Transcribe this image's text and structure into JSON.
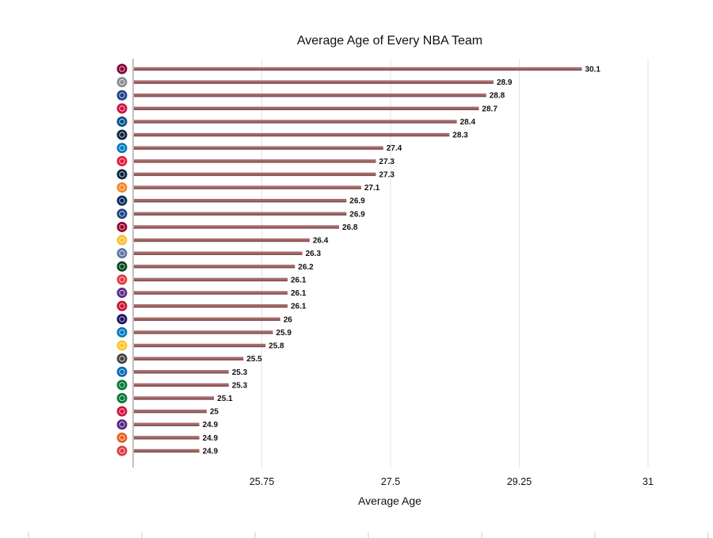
{
  "chart_data": {
    "type": "bar",
    "orientation": "horizontal",
    "title": "Average Age of Every NBA Team",
    "xlabel": "Average Age",
    "ylabel": "",
    "xlim": [
      24,
      31
    ],
    "xticks": [
      25.75,
      27.5,
      29.25,
      31
    ],
    "xtick_labels": [
      "25.75",
      "27.5",
      "29.25",
      "31"
    ],
    "grid": "vertical",
    "bar_color": "#a86b6b",
    "categories": [
      {
        "logo": "cavaliers-logo-icon",
        "color": "#860038"
      },
      {
        "logo": "spurs-logo-icon",
        "color": "#8a8d8f"
      },
      {
        "logo": "warriors-logo-icon",
        "color": "#1d428a"
      },
      {
        "logo": "rockets-logo-icon",
        "color": "#ce1141"
      },
      {
        "logo": "mavericks-logo-icon",
        "color": "#00538c"
      },
      {
        "logo": "pelicans-logo-icon",
        "color": "#0c2340"
      },
      {
        "logo": "thunder-logo-icon",
        "color": "#007ac1"
      },
      {
        "logo": "wizards-logo-icon",
        "color": "#e31837"
      },
      {
        "logo": "timberwolves-logo-icon",
        "color": "#0c2340"
      },
      {
        "logo": "knicks-logo-icon",
        "color": "#f58426"
      },
      {
        "logo": "jazz-logo-icon",
        "color": "#002b5c"
      },
      {
        "logo": "clippers-logo-icon",
        "color": "#1d428a"
      },
      {
        "logo": "heat-logo-icon",
        "color": "#98002e"
      },
      {
        "logo": "pacers-logo-icon",
        "color": "#fdbb30"
      },
      {
        "logo": "grizzlies-logo-icon",
        "color": "#5d76a9"
      },
      {
        "logo": "bucks-logo-icon",
        "color": "#00471b"
      },
      {
        "logo": "hawks-logo-icon",
        "color": "#e03a3e"
      },
      {
        "logo": "kings-logo-icon",
        "color": "#5a2d81"
      },
      {
        "logo": "pistons-logo-icon",
        "color": "#c8102e"
      },
      {
        "logo": "hornets-logo-icon",
        "color": "#1d1160"
      },
      {
        "logo": "magic-logo-icon",
        "color": "#0077c0"
      },
      {
        "logo": "nuggets-logo-icon",
        "color": "#fec524"
      },
      {
        "logo": "nets-logo-icon",
        "color": "#444444"
      },
      {
        "logo": "76ers-logo-icon",
        "color": "#006bb6"
      },
      {
        "logo": "celtics-logo-icon",
        "color": "#007a33"
      },
      {
        "logo": "celtics-alt-logo-icon",
        "color": "#007a33"
      },
      {
        "logo": "bulls-logo-icon",
        "color": "#ce1141"
      },
      {
        "logo": "lakers-logo-icon",
        "color": "#552583"
      },
      {
        "logo": "suns-logo-icon",
        "color": "#e56020"
      },
      {
        "logo": "trail-blazers-logo-icon",
        "color": "#e03a3e"
      }
    ],
    "values": [
      30.1,
      28.9,
      28.8,
      28.7,
      28.4,
      28.3,
      27.4,
      27.3,
      27.3,
      27.1,
      26.9,
      26.9,
      26.8,
      26.4,
      26.3,
      26.2,
      26.1,
      26.1,
      26.1,
      26,
      25.9,
      25.8,
      25.5,
      25.3,
      25.3,
      25.1,
      25,
      24.9,
      24.9,
      24.9
    ],
    "value_labels": [
      "30.1",
      "28.9",
      "28.8",
      "28.7",
      "28.4",
      "28.3",
      "27.4",
      "27.3",
      "27.3",
      "27.1",
      "26.9",
      "26.9",
      "26.8",
      "26.4",
      "26.3",
      "26.2",
      "26.1",
      "26.1",
      "26.1",
      "26",
      "25.9",
      "25.8",
      "25.5",
      "25.3",
      "25.3",
      "25.1",
      "25",
      "24.9",
      "24.9",
      "24.9"
    ]
  }
}
